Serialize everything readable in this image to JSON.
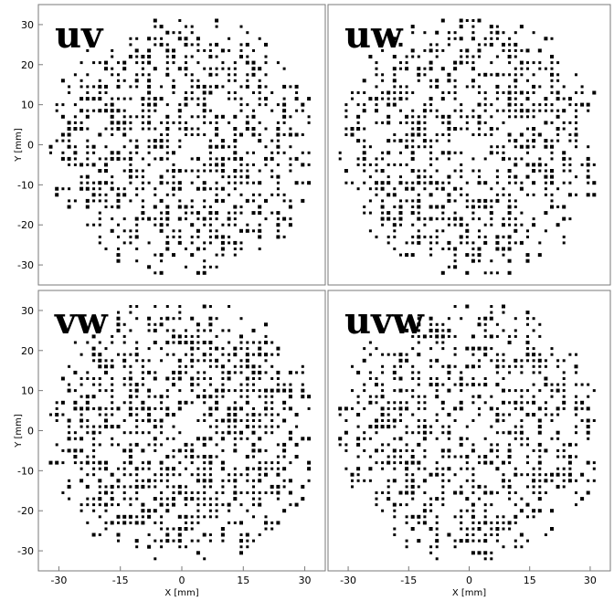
{
  "chart_data": [
    {
      "type": "scatter",
      "label": "uv",
      "xlabel": "",
      "ylabel": "Y [mm]",
      "xlim": [
        -35,
        35
      ],
      "ylim": [
        -35,
        35
      ],
      "xticks": [
        "-30",
        "-15",
        "0",
        "15",
        "30"
      ],
      "yticks": [
        "30",
        "20",
        "10",
        "0",
        "-10",
        "-20",
        "-30"
      ],
      "grid": false,
      "region": {
        "radius_mm": 32,
        "pitch_mm": 1.5,
        "gap_center": [
          2,
          0
        ],
        "gap_radius_mm": 2.5,
        "density": 0.55,
        "seed": 11
      }
    },
    {
      "type": "scatter",
      "label": "uw",
      "xlabel": "",
      "ylabel": "",
      "xlim": [
        -35,
        35
      ],
      "ylim": [
        -35,
        35
      ],
      "xticks": [
        "-30",
        "-15",
        "0",
        "15",
        "30"
      ],
      "yticks": [
        "30",
        "20",
        "10",
        "0",
        "-10",
        "-20",
        "-30"
      ],
      "grid": false,
      "region": {
        "radius_mm": 32,
        "pitch_mm": 1.5,
        "gap_center": [
          2,
          0
        ],
        "gap_radius_mm": 2.5,
        "density": 0.55,
        "seed": 23
      }
    },
    {
      "type": "scatter",
      "label": "vw",
      "xlabel": "X [mm]",
      "ylabel": "Y [mm]",
      "xlim": [
        -35,
        35
      ],
      "ylim": [
        -35,
        35
      ],
      "xticks": [
        "-30",
        "-15",
        "0",
        "15",
        "30"
      ],
      "yticks": [
        "30",
        "20",
        "10",
        "0",
        "-10",
        "-20",
        "-30"
      ],
      "grid": false,
      "region": {
        "radius_mm": 32,
        "pitch_mm": 1.5,
        "gap_center": [
          2,
          0
        ],
        "gap_radius_mm": 2.5,
        "density": 0.58,
        "seed": 37
      }
    },
    {
      "type": "scatter",
      "label": "uvw",
      "xlabel": "X [mm]",
      "ylabel": "",
      "xlim": [
        -35,
        35
      ],
      "ylim": [
        -35,
        35
      ],
      "xticks": [
        "-30",
        "-15",
        "0",
        "15",
        "30"
      ],
      "yticks": [
        "30",
        "20",
        "10",
        "0",
        "-10",
        "-20",
        "-30"
      ],
      "grid": false,
      "region": {
        "radius_mm": 32,
        "pitch_mm": 1.5,
        "gap_center": [
          2,
          0
        ],
        "gap_radius_mm": 2.5,
        "density": 0.5,
        "seed": 51
      }
    }
  ]
}
